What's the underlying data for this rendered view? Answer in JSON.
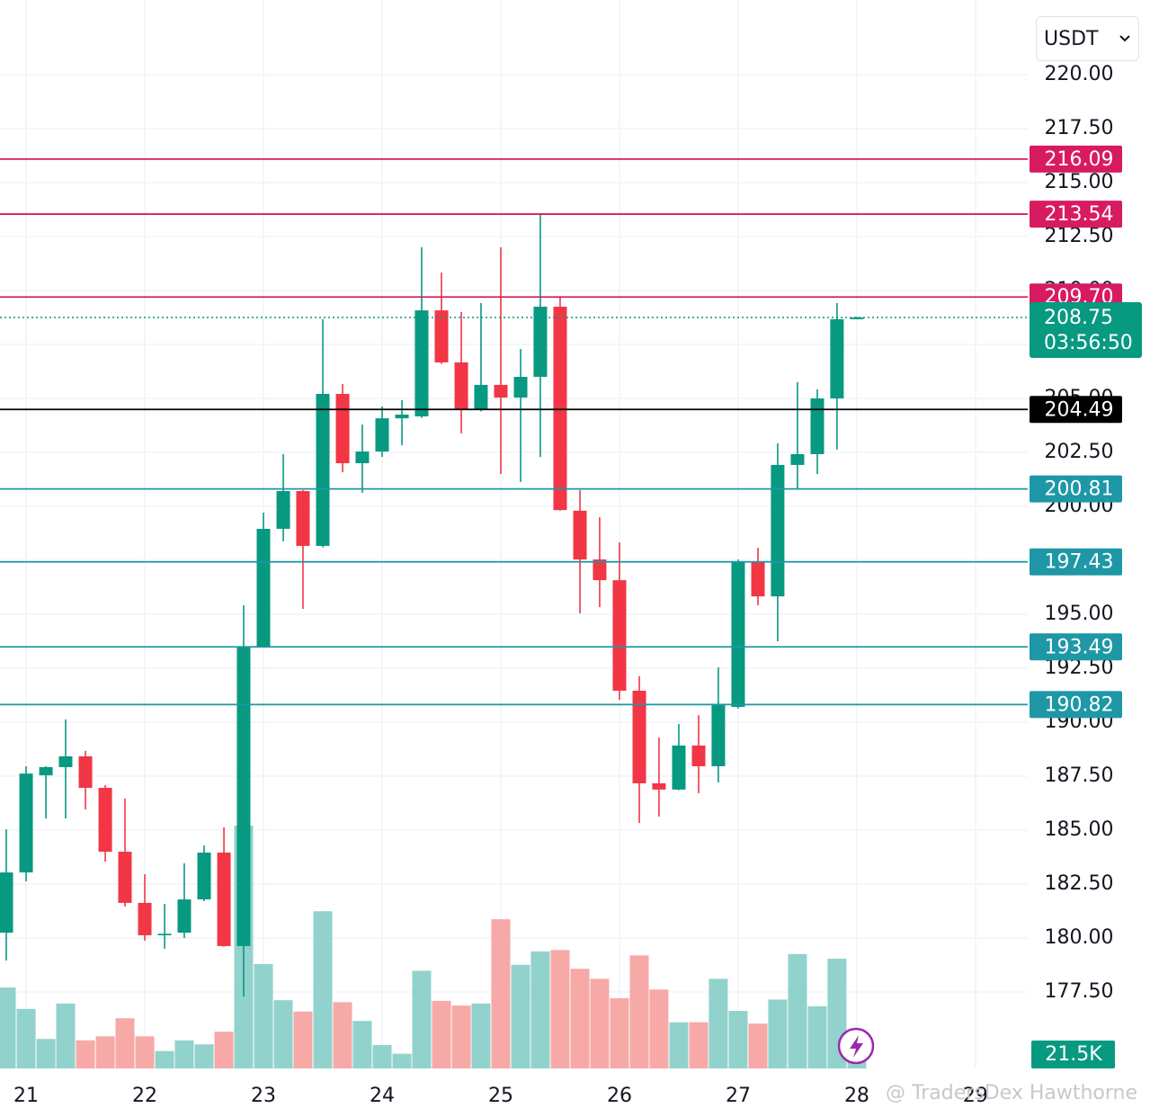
{
  "chart_data": {
    "type": "candlestick",
    "currency_selector": "USDT",
    "watermark": "@ TradersDex Hawthorne",
    "x": [
      20.833,
      21,
      21.167,
      21.333,
      21.5,
      21.667,
      21.833,
      22,
      22.167,
      22.333,
      22.5,
      22.667,
      22.833,
      23,
      23.167,
      23.333,
      23.5,
      23.667,
      23.833,
      24,
      24.167,
      24.333,
      24.5,
      24.667,
      24.833,
      25,
      25.167,
      25.333,
      25.5,
      25.667,
      25.833,
      26,
      26.167,
      26.333,
      26.5,
      26.667,
      26.833,
      27,
      27.167,
      27.333,
      27.5,
      27.667,
      27.833,
      28
    ],
    "open": [
      180.25,
      183.04,
      187.54,
      187.92,
      188.42,
      186.96,
      184.0,
      181.63,
      180.13,
      180.25,
      181.79,
      183.96,
      179.63,
      193.5,
      198.96,
      200.71,
      198.17,
      205.21,
      202.0,
      202.54,
      204.08,
      204.17,
      209.08,
      206.67,
      204.5,
      205.63,
      205.04,
      206.0,
      209.25,
      199.8,
      197.54,
      196.58,
      191.46,
      187.17,
      186.88,
      188.92,
      187.96,
      190.71,
      197.46,
      195.83,
      201.92,
      202.42,
      205.0,
      208.67
    ],
    "high": [
      185.04,
      187.96,
      187.96,
      190.13,
      188.67,
      187.08,
      186.46,
      182.96,
      181.58,
      183.46,
      184.29,
      185.13,
      195.42,
      199.71,
      202.42,
      200.75,
      208.67,
      205.67,
      203.79,
      204.63,
      204.92,
      212.0,
      210.83,
      209.0,
      209.42,
      212.0,
      207.29,
      213.58,
      209.67,
      200.75,
      199.5,
      198.33,
      192.13,
      189.29,
      189.92,
      190.33,
      192.54,
      197.54,
      198.08,
      202.92,
      205.75,
      205.42,
      209.42,
      208.79
    ],
    "low": [
      178.96,
      182.63,
      185.54,
      185.54,
      185.96,
      183.54,
      181.46,
      179.88,
      179.5,
      180.0,
      181.71,
      179.6,
      177.29,
      193.46,
      198.38,
      195.25,
      198.1,
      201.58,
      200.63,
      202.29,
      202.83,
      204.1,
      206.6,
      203.38,
      204.4,
      201.5,
      201.13,
      202.29,
      199.8,
      195.04,
      195.33,
      191.04,
      185.33,
      185.63,
      186.85,
      186.71,
      187.21,
      190.63,
      195.42,
      193.75,
      200.83,
      201.5,
      202.63,
      208.67
    ],
    "close": [
      183.04,
      187.62,
      187.92,
      188.42,
      186.96,
      184.0,
      181.63,
      180.13,
      180.2,
      181.79,
      183.96,
      179.63,
      193.5,
      198.96,
      200.71,
      198.17,
      205.21,
      202.0,
      202.54,
      204.08,
      204.25,
      209.08,
      206.67,
      204.5,
      205.63,
      205.04,
      206.0,
      209.25,
      199.83,
      197.54,
      196.58,
      191.46,
      187.17,
      186.88,
      188.92,
      187.96,
      190.79,
      197.46,
      195.83,
      201.92,
      202.42,
      205.0,
      208.67,
      208.75
    ],
    "volume": [
      121000,
      89000,
      44000,
      97000,
      42000,
      48000,
      75000,
      48000,
      26000,
      42000,
      36000,
      55000,
      363000,
      156000,
      102000,
      85000,
      235000,
      99000,
      71000,
      35000,
      22000,
      146000,
      101000,
      94000,
      97000,
      223000,
      155000,
      175000,
      177000,
      149000,
      134000,
      105000,
      169000,
      118000,
      69000,
      69000,
      134000,
      86000,
      67000,
      103000,
      171000,
      93000,
      164000,
      21500
    ],
    "last_volume_label": "21.5K",
    "colors": {
      "up": "#089981",
      "down": "#f23645",
      "volume_up": "#92d2cc",
      "volume_down": "#f7a9a7"
    },
    "xlim": [
      20.78,
      29.44
    ],
    "xticks": [
      21,
      22,
      23,
      24,
      25,
      26,
      27,
      28,
      29
    ],
    "ylim": [
      173.96,
      223.46
    ],
    "yticks": [
      {
        "value": 177.5,
        "label": "177.50"
      },
      {
        "value": 180,
        "label": "180.00"
      },
      {
        "value": 182.5,
        "label": "182.50"
      },
      {
        "value": 185,
        "label": "185.00"
      },
      {
        "value": 187.5,
        "label": "187.50"
      },
      {
        "value": 190,
        "label": "190.00"
      },
      {
        "value": 192.5,
        "label": "192.50"
      },
      {
        "value": 195,
        "label": "195.00"
      },
      {
        "value": 197.5,
        "label": "197.50"
      },
      {
        "value": 200,
        "label": "200.00"
      },
      {
        "value": 202.5,
        "label": "202.50"
      },
      {
        "value": 205,
        "label": "205.00"
      },
      {
        "value": 207.5,
        "label": "207.50"
      },
      {
        "value": 210,
        "label": "210.00"
      },
      {
        "value": 212.5,
        "label": "212.50"
      },
      {
        "value": 215,
        "label": "215.00"
      },
      {
        "value": 217.5,
        "label": "217.50"
      },
      {
        "value": 220,
        "label": "220.00"
      }
    ],
    "grid": true,
    "levels": [
      {
        "value": 216.09,
        "color": "#d81b60"
      },
      {
        "value": 213.54,
        "color": "#d81b60"
      },
      {
        "value": 209.7,
        "label": "209.70",
        "color": "#d81b60"
      },
      {
        "value": 204.49,
        "color": "#000000"
      },
      {
        "value": 200.81,
        "color": "#1e97a6"
      },
      {
        "value": 197.43,
        "color": "#1e97a6"
      },
      {
        "value": 193.49,
        "color": "#1e97a6"
      },
      {
        "value": 190.82,
        "color": "#1e97a6"
      }
    ],
    "current_price": 208.75,
    "countdown": "03:56:50"
  }
}
